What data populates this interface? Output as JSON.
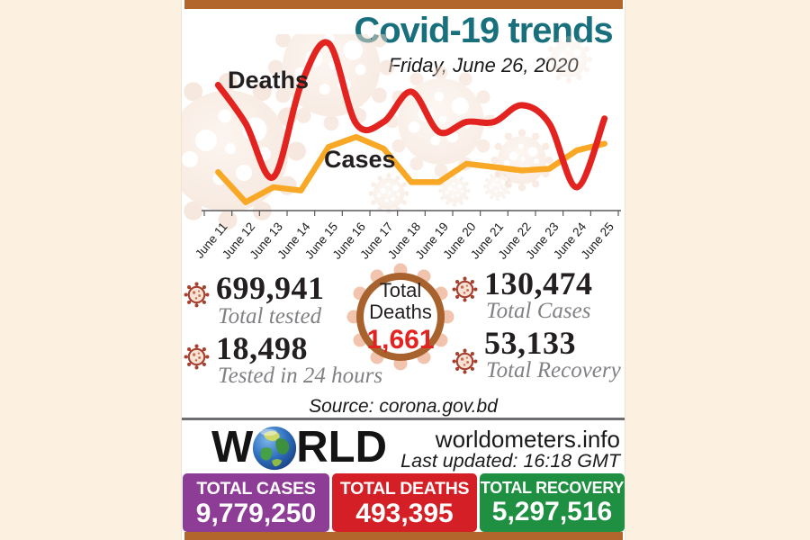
{
  "colors": {
    "background": "#fcf0e1",
    "panel": "#ffffff",
    "bar": "#b2662b",
    "title_teal": "#19707d",
    "deaths_red": "#e2231f",
    "cases_orange": "#f8a824",
    "badge_ring_brown": "#a8622d"
  },
  "header": {
    "title": "Covid-19 trends",
    "subtitle": "Friday, June 26, 2020"
  },
  "chart_data": {
    "type": "line",
    "categories": [
      "June 11",
      "June 12",
      "June 13",
      "June 14",
      "June 15",
      "June 16",
      "June 17",
      "June 18",
      "June 19",
      "June 20",
      "June 21",
      "June 22",
      "June 23",
      "June 24",
      "June 25"
    ],
    "series": [
      {
        "name": "Deaths",
        "color": "#e2231f",
        "line_style": "smooth",
        "values": [
          75,
          52,
          20,
          75,
          100,
          52,
          53,
          71,
          47,
          53,
          53,
          63,
          52,
          14,
          55
        ]
      },
      {
        "name": "Cases",
        "color": "#f8a824",
        "line_style": "straight",
        "values": [
          23,
          5,
          14,
          12,
          38,
          44,
          37,
          17,
          17,
          28,
          26,
          24,
          25,
          36,
          40
        ]
      }
    ],
    "title": "Covid-19 trends",
    "xlabel": "",
    "ylabel": "",
    "ylim": [
      0,
      105
    ],
    "y_axis_visible": false,
    "grid": false,
    "legend": "inline labels near lines",
    "units": "relative units (source chart shows no y-axis)"
  },
  "stats": {
    "tested_total": {
      "value": "699,941",
      "label": "Total tested"
    },
    "tested_24h": {
      "value": "18,498",
      "label": "Tested in 24 hours"
    },
    "total_cases": {
      "value": "130,474",
      "label": "Total Cases"
    },
    "total_recovery": {
      "value": "53,133",
      "label": "Total Recovery"
    },
    "badge": {
      "title_line1": "Total",
      "title_line2": "Deaths",
      "value": "1,661"
    },
    "source": "Source: corona.gov.bd"
  },
  "world": {
    "wordmark_prefix": "W",
    "wordmark_suffix": "RLD",
    "site": "worldometers.info",
    "updated": "Last updated: 16:18 GMT",
    "totals": [
      {
        "label": "TOTAL CASES",
        "value": "9,779,250",
        "color": "#8e3d96"
      },
      {
        "label": "TOTAL DEATHS",
        "value": "493,395",
        "color": "#d51f26"
      },
      {
        "label": "TOTAL RECOVERY",
        "value": "5,297,516",
        "color": "#1f9042"
      }
    ]
  }
}
